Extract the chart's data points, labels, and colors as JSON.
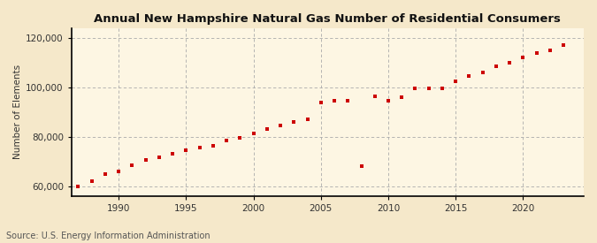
{
  "title": "Annual New Hampshire Natural Gas Number of Residential Consumers",
  "ylabel": "Number of Elements",
  "source": "Source: U.S. Energy Information Administration",
  "background_color": "#f5e8ca",
  "plot_bg_color": "#fdf6e3",
  "line_color": "#cc0000",
  "marker_color": "#cc0000",
  "grid_color": "#aaaaaa",
  "spine_color": "#000000",
  "xlim": [
    1986.5,
    2024.5
  ],
  "ylim": [
    56000,
    124000
  ],
  "xticks": [
    1990,
    1995,
    2000,
    2005,
    2010,
    2015,
    2020
  ],
  "yticks": [
    60000,
    80000,
    100000,
    120000
  ],
  "data": [
    [
      1987,
      60000
    ],
    [
      1988,
      62000
    ],
    [
      1989,
      65000
    ],
    [
      1990,
      66000
    ],
    [
      1991,
      68500
    ],
    [
      1992,
      70500
    ],
    [
      1993,
      71500
    ],
    [
      1994,
      73000
    ],
    [
      1995,
      74500
    ],
    [
      1996,
      75500
    ],
    [
      1997,
      76500
    ],
    [
      1998,
      78500
    ],
    [
      1999,
      79500
    ],
    [
      2000,
      81500
    ],
    [
      2001,
      83000
    ],
    [
      2002,
      84500
    ],
    [
      2003,
      86000
    ],
    [
      2004,
      87000
    ],
    [
      2005,
      94000
    ],
    [
      2006,
      94500
    ],
    [
      2007,
      94500
    ],
    [
      2008,
      68000
    ],
    [
      2009,
      96500
    ],
    [
      2010,
      94500
    ],
    [
      2011,
      96000
    ],
    [
      2012,
      99500
    ],
    [
      2013,
      99500
    ],
    [
      2014,
      99500
    ],
    [
      2015,
      102500
    ],
    [
      2016,
      104500
    ],
    [
      2017,
      106000
    ],
    [
      2018,
      108500
    ],
    [
      2019,
      110000
    ],
    [
      2020,
      112000
    ],
    [
      2021,
      114000
    ],
    [
      2022,
      115000
    ],
    [
      2023,
      117000
    ]
  ]
}
